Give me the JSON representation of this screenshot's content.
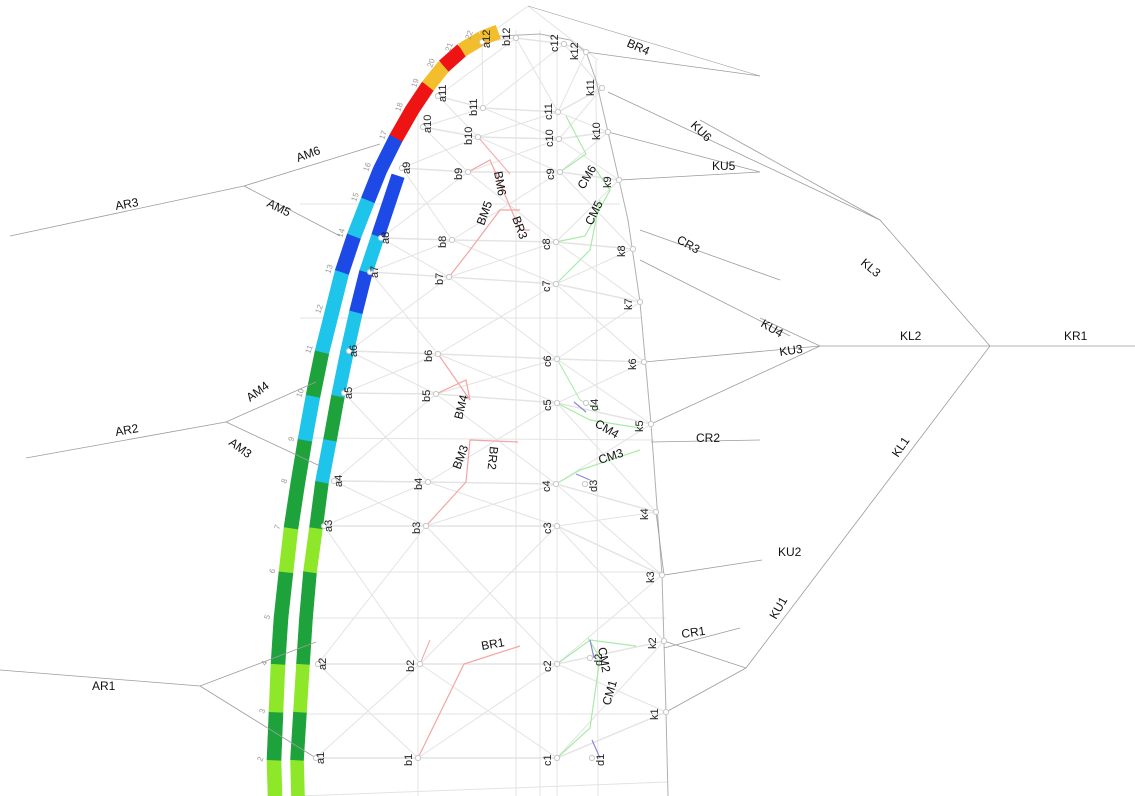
{
  "colors": {
    "outline": "#b0b0b0",
    "grid": "#e3e3e3",
    "branch": "#9c9c9c",
    "b_path": "#f4a4a4",
    "c_path": "#a6eca6",
    "d_path": "#8a8ad6",
    "node": "#c8c8c8",
    "text": "#222222"
  },
  "labels": {
    "a": [
      "a1",
      "a2",
      "a3",
      "a4",
      "a5",
      "a6",
      "a7",
      "a8",
      "a9",
      "a10",
      "a11",
      "a12"
    ],
    "b": [
      "b1",
      "b2",
      "b3",
      "b4",
      "b5",
      "b6",
      "b7",
      "b8",
      "b9",
      "b10",
      "b11",
      "b12"
    ],
    "c": [
      "c1",
      "c2",
      "c3",
      "c4",
      "c5",
      "c6",
      "c7",
      "c8",
      "c9",
      "c10",
      "c11",
      "c12"
    ],
    "k": [
      "k1",
      "k2",
      "k3",
      "k4",
      "k5",
      "k6",
      "k7",
      "k8",
      "k9",
      "k10",
      "k11",
      "k12"
    ],
    "d": [
      "d1",
      "d2",
      "d3",
      "d4"
    ],
    "segments": [
      "2",
      "3",
      "4",
      "5",
      "6",
      "7",
      "8",
      "9",
      "10",
      "11",
      "12",
      "13",
      "14",
      "15",
      "16",
      "17",
      "18",
      "19",
      "20",
      "21",
      "22"
    ],
    "bm": [
      "BM3",
      "BM4",
      "BM5",
      "BM6"
    ],
    "br": [
      "BR1",
      "BR2",
      "BR3"
    ],
    "cm": [
      "CM1",
      "CM2",
      "CM3",
      "CM4",
      "CM5",
      "CM6"
    ],
    "cr": [
      "CR1",
      "CR2",
      "CR3"
    ],
    "ar": [
      "AR1",
      "AR2",
      "AR3"
    ],
    "am": [
      "AM3",
      "AM4",
      "AM5",
      "AM6"
    ],
    "ku": [
      "KU1",
      "KU2",
      "KU3",
      "KU4",
      "KU5",
      "KU6"
    ],
    "kl": [
      "KL1",
      "KL2",
      "KL3"
    ],
    "kr": [
      "KR1"
    ],
    "brt": [
      "BR4"
    ]
  },
  "strip": {
    "inner_colors": [
      "#8ee829",
      "#1ea33c",
      "#8ee829",
      "#1ea33c",
      "#1ea33c",
      "#8ee829",
      "#1ea33c",
      "#1ea33c",
      "#1ec4ea",
      "#1ea33c",
      "#1ec4ea",
      "#1ec4ea",
      "#1d49e6",
      "#1ec4ea",
      "#1d49e6",
      "#1d49e6",
      "#ee1414",
      "#ee1414",
      "#f2be2c",
      "#ee1414",
      "#f2be2c",
      "#f2be2c"
    ],
    "outer_colors": [
      "#8ee829",
      "#1ea33c",
      "#8ee829",
      "#1ea33c",
      "#1ea33c",
      "#8ee829",
      "#1ea33c",
      "#1ec4ea",
      "#1ea33c",
      "#1ec4ea",
      "#1ec4ea",
      "#1d49e6",
      "#1ec4ea",
      "#1d49e6",
      "#1d49e6"
    ]
  }
}
